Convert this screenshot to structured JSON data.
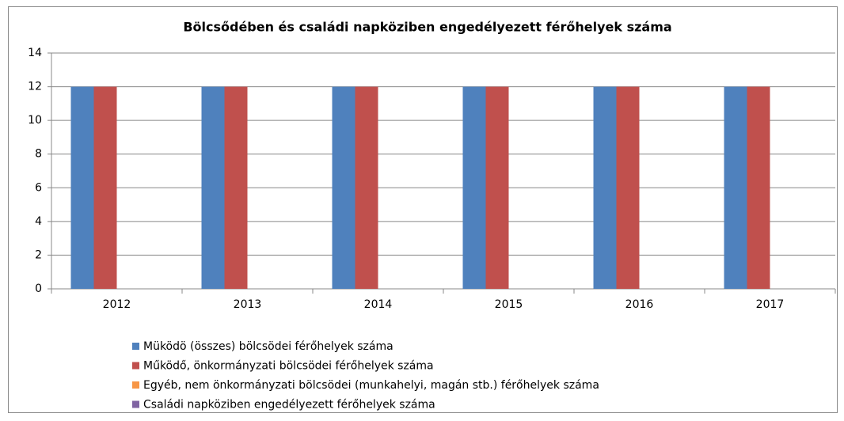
{
  "chart_data": {
    "type": "bar",
    "title": "Bölcsődében és családi napköziben engedélyezett férőhelyek száma",
    "categories": [
      "2012",
      "2013",
      "2014",
      "2015",
      "2016",
      "2017"
    ],
    "series": [
      {
        "name": "Müködö (összes) bölcsödei férőhelyek száma",
        "color": "#4f81bd",
        "values": [
          12,
          12,
          12,
          12,
          12,
          12
        ]
      },
      {
        "name": "Működő, önkormányzati bölcsödei férőhelyek száma",
        "color": "#c0504d",
        "values": [
          12,
          12,
          12,
          12,
          12,
          12
        ]
      },
      {
        "name": "Egyéb, nem önkormányzati bölcsödei (munkahelyi, magán stb.) férőhelyek száma",
        "color": "#f79646",
        "values": [
          0,
          0,
          0,
          0,
          0,
          0
        ]
      },
      {
        "name": "Családi napköziben engedélyezett férőhelyek száma",
        "color": "#8064a2",
        "values": [
          0,
          0,
          0,
          0,
          0,
          0
        ]
      }
    ],
    "ylim": [
      0,
      14
    ],
    "yticks": [
      0,
      2,
      4,
      6,
      8,
      10,
      12,
      14
    ],
    "grid": true,
    "legend": "bottom"
  }
}
